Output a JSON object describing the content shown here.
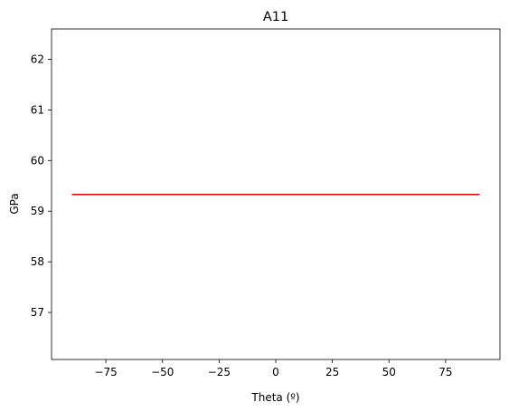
{
  "chart_data": {
    "type": "line",
    "title": "A11",
    "xlabel": "Theta (º)",
    "ylabel": "GPa",
    "xlim": [
      -99,
      99
    ],
    "ylim": [
      56.07,
      62.6
    ],
    "xticks": [
      -75,
      -50,
      -25,
      0,
      25,
      50,
      75
    ],
    "xtick_labels": [
      "−75",
      "−50",
      "−25",
      "0",
      "25",
      "50",
      "75"
    ],
    "yticks": [
      57,
      58,
      59,
      60,
      61,
      62
    ],
    "ytick_labels": [
      "57",
      "58",
      "59",
      "60",
      "61",
      "62"
    ],
    "grid": false,
    "series": [
      {
        "color": "#ff0000",
        "x": [
          -90,
          90
        ],
        "y": [
          59.33,
          59.33
        ]
      }
    ]
  }
}
